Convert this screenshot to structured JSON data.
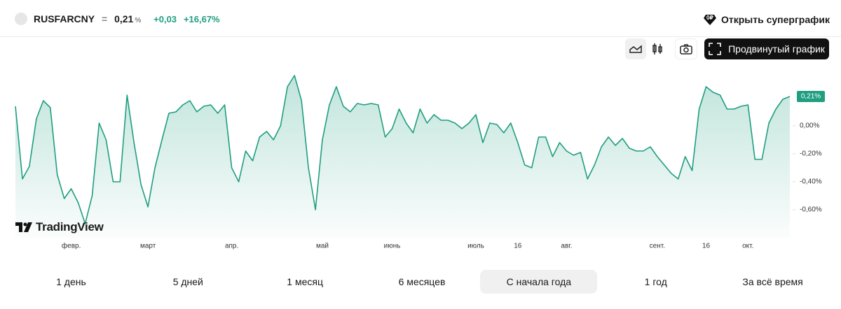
{
  "header": {
    "ticker": "RUSFARCNY",
    "equals": "=",
    "price": "0,21",
    "price_unit": "%",
    "change": "+0,03",
    "change_percent": "+16,67%",
    "open_button": "Открыть суперграфик"
  },
  "toolbar": {
    "advanced_button": "Продвинутый график"
  },
  "logo": "TradingView",
  "chart_data": {
    "type": "line",
    "color": "#1f9e80",
    "categories": [
      null,
      null,
      null,
      null,
      null,
      null,
      null,
      null,
      "февр.",
      null,
      null,
      null,
      null,
      null,
      null,
      null,
      null,
      null,
      null,
      "март",
      null,
      null,
      null,
      null,
      null,
      null,
      null,
      null,
      null,
      null,
      null,
      "апр.",
      null,
      null,
      null,
      null,
      null,
      null,
      null,
      null,
      null,
      null,
      null,
      null,
      "май",
      null,
      null,
      null,
      null,
      null,
      null,
      null,
      null,
      null,
      "июнь",
      null,
      null,
      null,
      null,
      null,
      null,
      null,
      null,
      null,
      null,
      null,
      "июль",
      null,
      null,
      null,
      null,
      null,
      "16",
      null,
      null,
      null,
      null,
      null,
      null,
      "авг.",
      null,
      null,
      null,
      null,
      null,
      null,
      null,
      null,
      null,
      null,
      null,
      null,
      "сент.",
      null,
      null,
      null,
      null,
      null,
      null,
      "16",
      null,
      null,
      null,
      null,
      null,
      "окт.",
      null,
      null,
      null,
      null,
      null,
      null
    ],
    "values": [
      0.14,
      -0.38,
      -0.29,
      0.05,
      0.18,
      0.13,
      -0.35,
      -0.52,
      -0.45,
      -0.55,
      -0.7,
      -0.5,
      0.02,
      -0.1,
      -0.4,
      -0.4,
      0.22,
      -0.12,
      -0.42,
      -0.58,
      -0.3,
      -0.1,
      0.09,
      0.1,
      0.15,
      0.18,
      0.1,
      0.14,
      0.15,
      0.09,
      0.15,
      -0.3,
      -0.4,
      -0.18,
      -0.25,
      -0.08,
      -0.04,
      -0.1,
      0.0,
      0.28,
      0.36,
      0.18,
      -0.3,
      -0.6,
      -0.1,
      0.15,
      0.28,
      0.14,
      0.1,
      0.16,
      0.15,
      0.16,
      0.15,
      -0.08,
      -0.02,
      0.12,
      0.02,
      -0.05,
      0.12,
      0.02,
      0.08,
      0.04,
      0.04,
      0.02,
      -0.02,
      0.02,
      0.08,
      -0.12,
      0.02,
      0.01,
      -0.05,
      0.02,
      -0.12,
      -0.28,
      -0.3,
      -0.08,
      -0.08,
      -0.22,
      -0.12,
      -0.18,
      -0.21,
      -0.19,
      -0.38,
      -0.28,
      -0.15,
      -0.08,
      -0.14,
      -0.09,
      -0.16,
      -0.18,
      -0.18,
      -0.15,
      -0.22,
      -0.28,
      -0.34,
      -0.38,
      -0.22,
      -0.32,
      0.12,
      0.28,
      0.24,
      0.22,
      0.12,
      0.12,
      0.14,
      0.15,
      -0.24,
      -0.24,
      0.02,
      0.12,
      0.19,
      0.21
    ],
    "last_value_label": "0,21%",
    "ylim": [
      -0.8,
      0.4
    ],
    "yticks": [
      {
        "value": 0,
        "label": "0,00%"
      },
      {
        "value": -0.2,
        "label": "-0,20%"
      },
      {
        "value": -0.4,
        "label": "-0,40%"
      },
      {
        "value": -0.6,
        "label": "-0,60%"
      }
    ]
  },
  "periods": [
    "1 день",
    "5 дней",
    "1 месяц",
    "6 месяцев",
    "С начала года",
    "1 год",
    "За всё время"
  ],
  "active_period": 4
}
